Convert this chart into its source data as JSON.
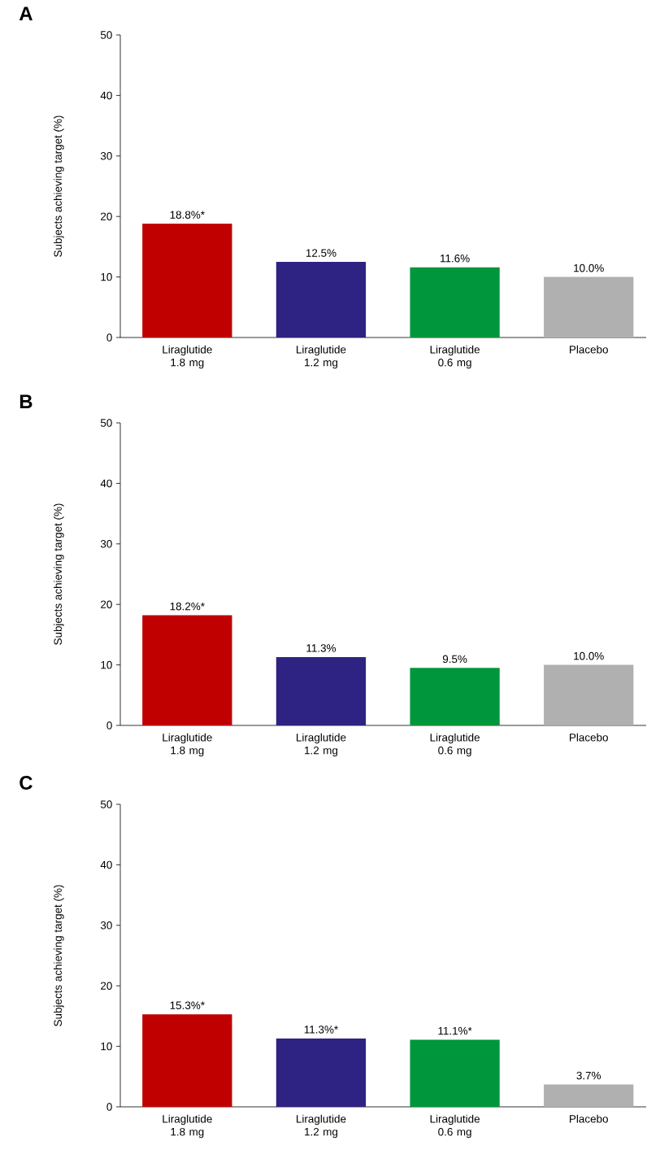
{
  "chart_data": [
    {
      "type": "bar",
      "title": "A",
      "ylabel": "Subjects achieving target (%)",
      "categories": [
        "Liraglutide 1.8 mg",
        "Liraglutide 1.2 mg",
        "Liraglutide 0.6 mg",
        "Placebo"
      ],
      "values": [
        18.8,
        12.5,
        11.6,
        10.0
      ],
      "value_labels": [
        "18.8%*",
        "12.5%",
        "11.6%",
        "10.0%"
      ],
      "colors": [
        "#c00000",
        "#2e2282",
        "#00963c",
        "#b0b0b0"
      ],
      "ylim": [
        0,
        50
      ],
      "yticks": [
        0,
        10,
        20,
        30,
        40,
        50
      ]
    },
    {
      "type": "bar",
      "title": "B",
      "ylabel": "Subjects achieving target (%)",
      "categories": [
        "Liraglutide 1.8 mg",
        "Liraglutide 1.2 mg",
        "Liraglutide 0.6 mg",
        "Placebo"
      ],
      "values": [
        18.2,
        11.3,
        9.5,
        10.0
      ],
      "value_labels": [
        "18.2%*",
        "11.3%",
        "9.5%",
        "10.0%"
      ],
      "colors": [
        "#c00000",
        "#2e2282",
        "#00963c",
        "#b0b0b0"
      ],
      "ylim": [
        0,
        50
      ],
      "yticks": [
        0,
        10,
        20,
        30,
        40,
        50
      ]
    },
    {
      "type": "bar",
      "title": "C",
      "ylabel": "Subjects achieving target (%)",
      "categories": [
        "Liraglutide 1.8 mg",
        "Liraglutide 1.2 mg",
        "Liraglutide 0.6 mg",
        "Placebo"
      ],
      "values": [
        15.3,
        11.3,
        11.1,
        3.7
      ],
      "value_labels": [
        "15.3%*",
        "11.3%*",
        "11.1%*",
        "3.7%"
      ],
      "colors": [
        "#c00000",
        "#2e2282",
        "#00963c",
        "#b0b0b0"
      ],
      "ylim": [
        0,
        50
      ],
      "yticks": [
        0,
        10,
        20,
        30,
        40,
        50
      ]
    }
  ]
}
